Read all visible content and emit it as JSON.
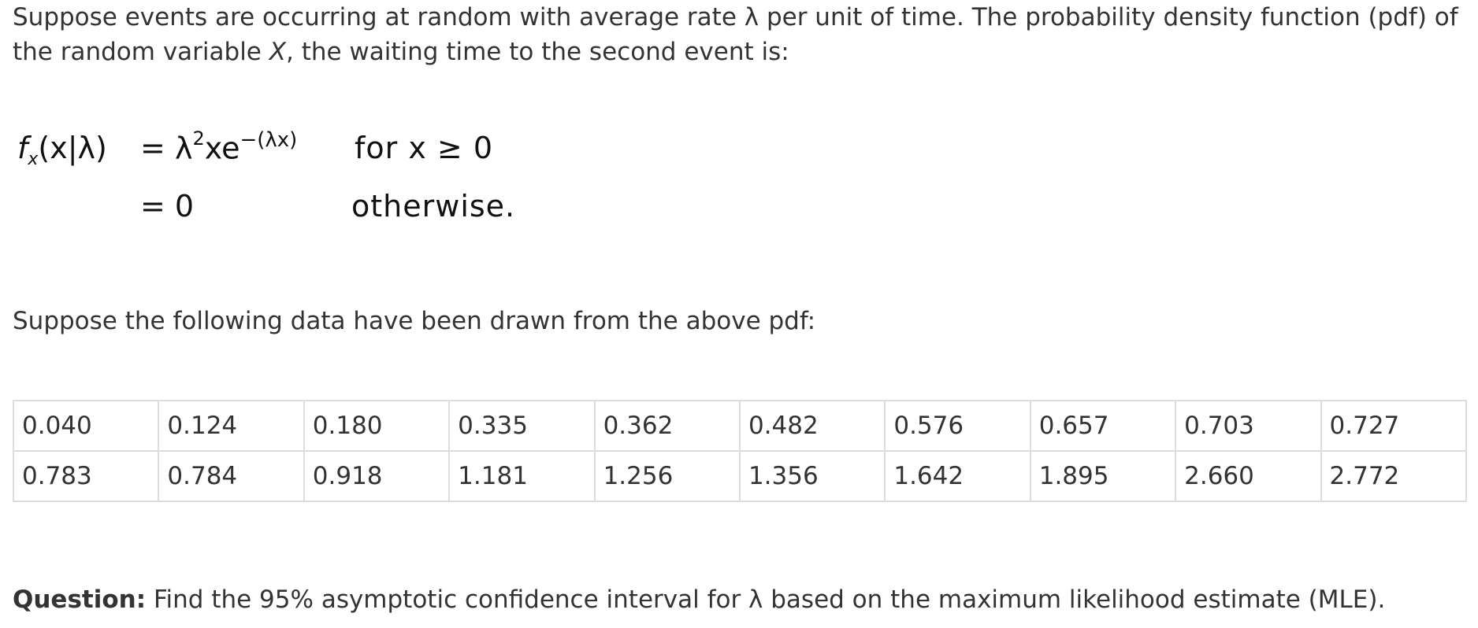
{
  "intro": {
    "part1": "Suppose events are occurring at random with average rate λ per unit of time. The probability density function (pdf) of the random variable ",
    "var": "X",
    "part2": ", the waiting time to the second event is:"
  },
  "formula": {
    "lhs_f": "f",
    "lhs_sub": "x",
    "lhs_args": "(x|λ)",
    "eq1": "=",
    "rhs1_base": "λ",
    "rhs1_pow": "2",
    "rhs1_xe": "xe",
    "rhs1_exp": "−(λx)",
    "cond1": "for x ≥ 0",
    "eq2": "= 0",
    "cond2": "otherwise."
  },
  "data_intro": "Suppose the following data have been drawn from the above pdf:",
  "table": {
    "rows": [
      [
        "0.040",
        "0.124",
        "0.180",
        "0.335",
        "0.362",
        "0.482",
        "0.576",
        "0.657",
        "0.703",
        "0.727"
      ],
      [
        "0.783",
        "0.784",
        "0.918",
        "1.181",
        "1.256",
        "1.356",
        "1.642",
        "1.895",
        "2.660",
        "2.772"
      ]
    ]
  },
  "question": {
    "label": "Question:",
    "text": " Find the 95% asymptotic confidence interval for λ based on the maximum likelihood estimate (MLE)."
  }
}
